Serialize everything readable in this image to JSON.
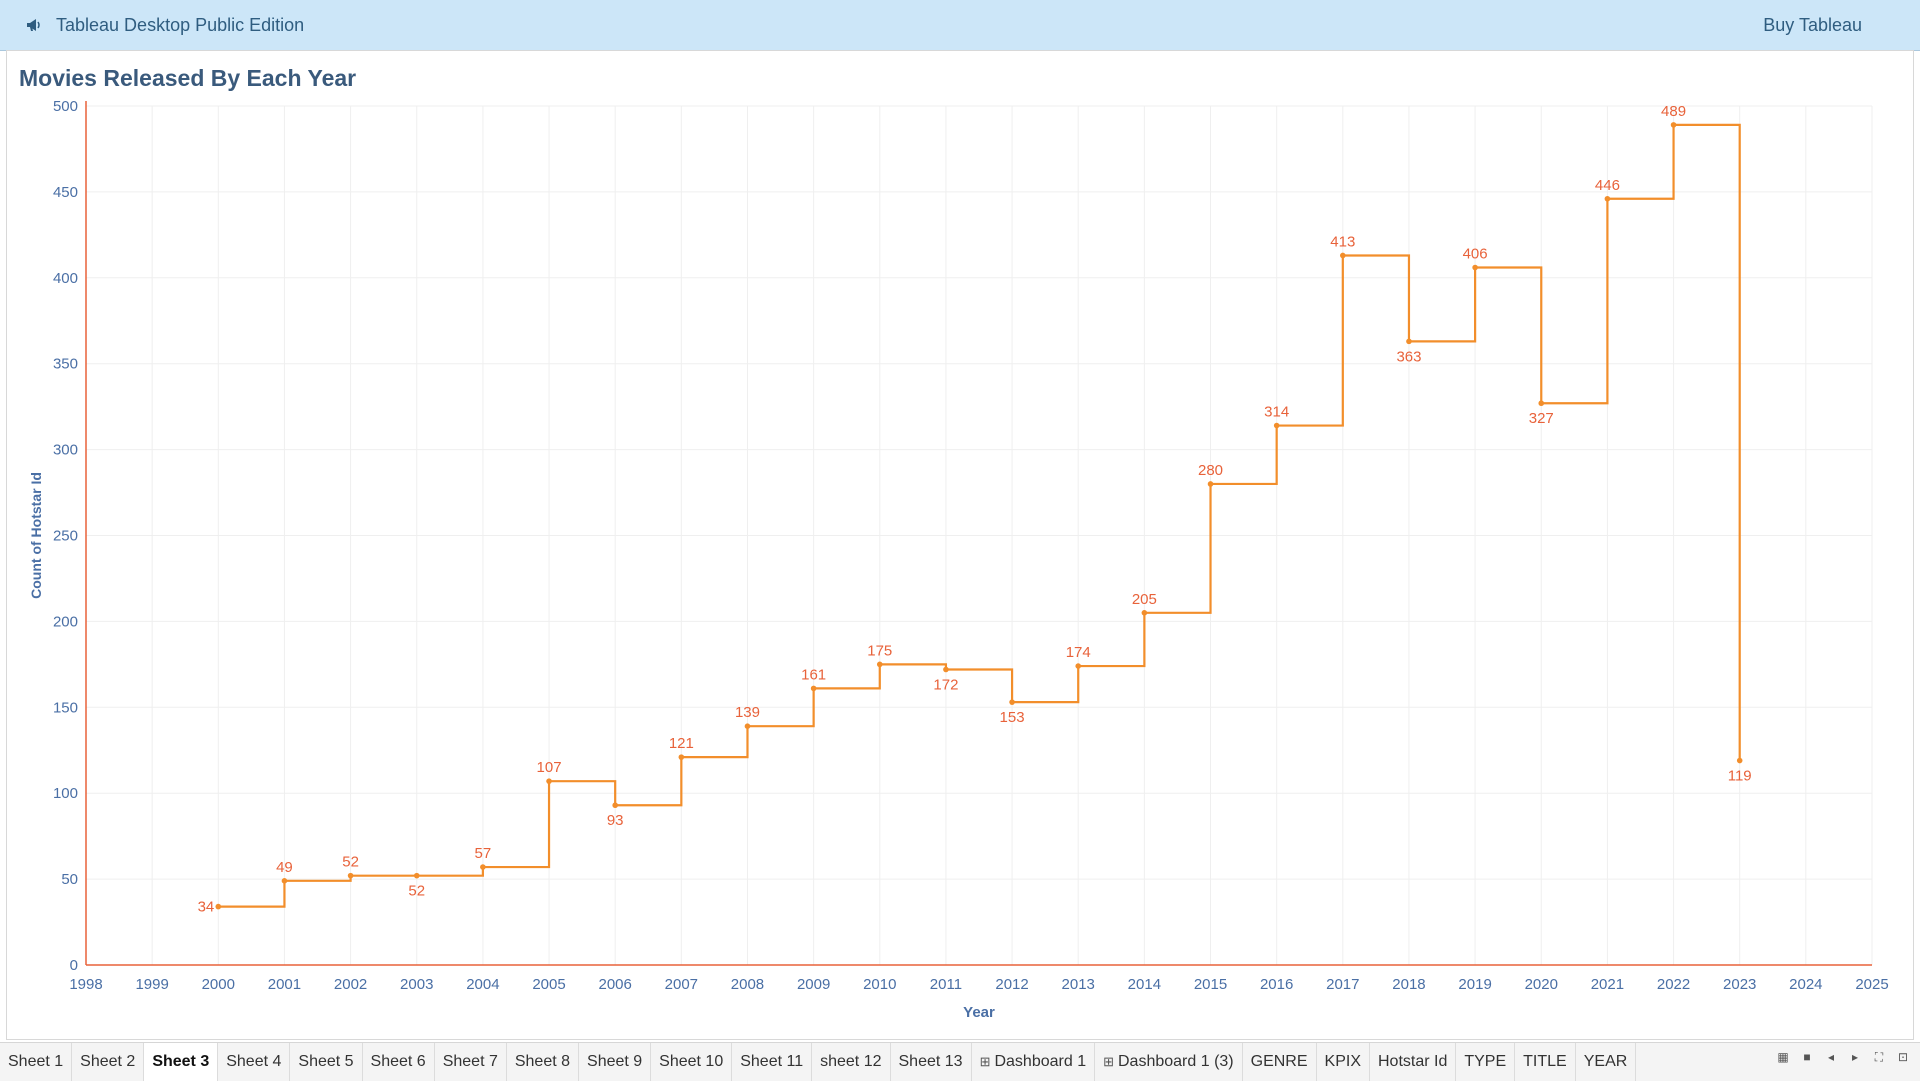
{
  "header": {
    "app_title": "Tableau Desktop Public Edition",
    "buy_label": "Buy Tableau"
  },
  "colors": {
    "line": "#f28e2b",
    "label": "#e8623a",
    "axis": "#e8623a",
    "tick_text": "#4a6fa5",
    "title": "#3a5a7c"
  },
  "chart_data": {
    "type": "line",
    "step": true,
    "title": "Movies Released By Each Year",
    "xlabel": "Year",
    "ylabel": "Count of Hotstar Id",
    "xlim": [
      1998,
      2025
    ],
    "ylim": [
      0,
      500
    ],
    "x_ticks": [
      "1998",
      "1999",
      "2000",
      "2001",
      "2002",
      "2003",
      "2004",
      "2005",
      "2006",
      "2007",
      "2008",
      "2009",
      "2010",
      "2011",
      "2012",
      "2013",
      "2014",
      "2015",
      "2016",
      "2017",
      "2018",
      "2019",
      "2020",
      "2021",
      "2022",
      "2023",
      "2024",
      "2025"
    ],
    "y_ticks": [
      "0",
      "50",
      "100",
      "150",
      "200",
      "250",
      "300",
      "350",
      "400",
      "450",
      "500"
    ],
    "x": [
      2000,
      2001,
      2002,
      2003,
      2004,
      2005,
      2006,
      2007,
      2008,
      2009,
      2010,
      2011,
      2012,
      2013,
      2014,
      2015,
      2016,
      2017,
      2018,
      2019,
      2020,
      2021,
      2022,
      2023
    ],
    "values": [
      34,
      49,
      52,
      52,
      57,
      107,
      93,
      121,
      139,
      161,
      175,
      172,
      153,
      174,
      205,
      280,
      314,
      413,
      363,
      406,
      327,
      446,
      489,
      119
    ],
    "data_labels": [
      "34",
      "49",
      "52",
      "52",
      "57",
      "107",
      "93",
      "121",
      "139",
      "161",
      "175",
      "172",
      "153",
      "174",
      "205",
      "280",
      "314",
      "413",
      "363",
      "406",
      "327",
      "446",
      "489",
      "119"
    ],
    "grid": true
  },
  "tabs": [
    {
      "label": "Sheet 1"
    },
    {
      "label": "Sheet 2"
    },
    {
      "label": "Sheet 3",
      "active": true
    },
    {
      "label": "Sheet 4"
    },
    {
      "label": "Sheet 5"
    },
    {
      "label": "Sheet 6"
    },
    {
      "label": "Sheet 7"
    },
    {
      "label": "Sheet 8"
    },
    {
      "label": "Sheet 9"
    },
    {
      "label": "Sheet 10"
    },
    {
      "label": "Sheet 11"
    },
    {
      "label": "sheet 12"
    },
    {
      "label": "Sheet 13"
    },
    {
      "label": "Dashboard 1",
      "dashboard": true
    },
    {
      "label": "Dashboard 1 (3)",
      "dashboard": true
    },
    {
      "label": "GENRE"
    },
    {
      "label": "KPIX"
    },
    {
      "label": "Hotstar Id"
    },
    {
      "label": "TYPE"
    },
    {
      "label": "TITLE"
    },
    {
      "label": "YEAR"
    }
  ]
}
